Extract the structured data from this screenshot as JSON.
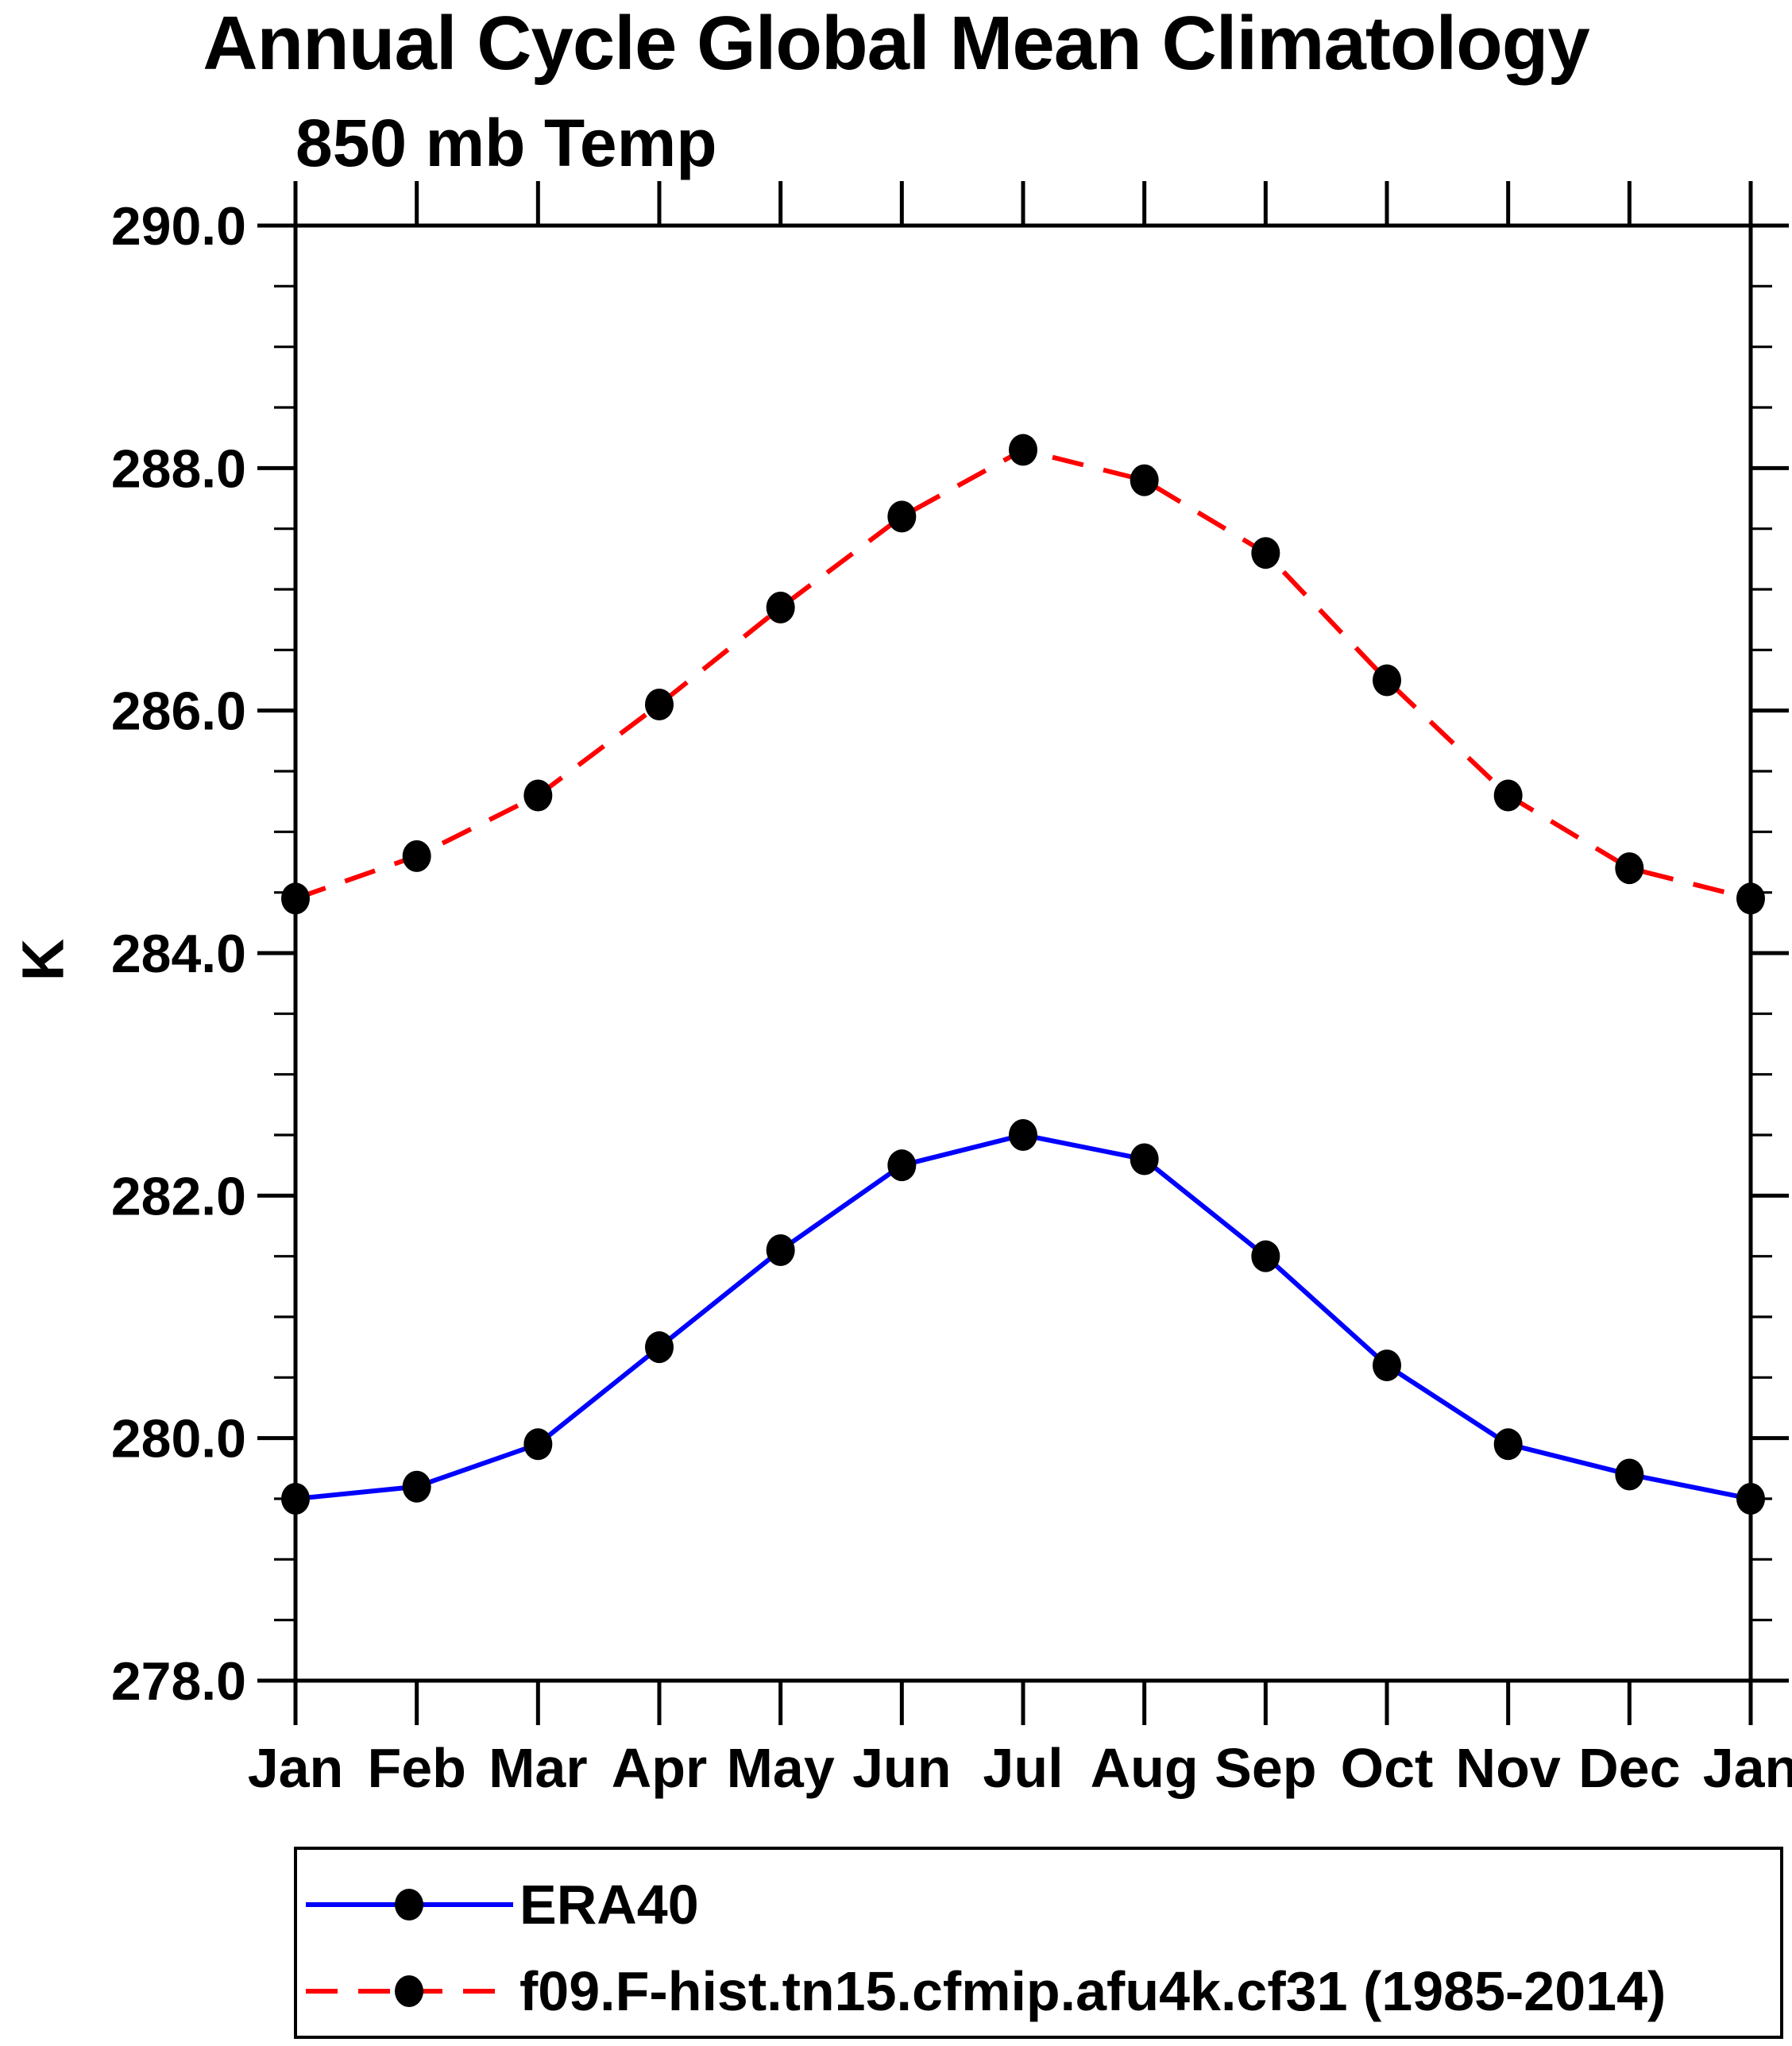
{
  "header": {
    "title": "Annual Cycle Global Mean Climatology",
    "left_string": "850 mb Temp"
  },
  "axes": {
    "y_label": "K",
    "y_tick_labels": [
      "290.0",
      "288.0",
      "286.0",
      "284.0",
      "282.0",
      "280.0",
      "278.0"
    ],
    "x_tick_labels": [
      "Jan",
      "Feb",
      "Mar",
      "Apr",
      "May",
      "Jun",
      "Jul",
      "Aug",
      "Sep",
      "Oct",
      "Nov",
      "Dec",
      "Jan"
    ]
  },
  "colors": {
    "era40_line": "#0000FF",
    "model_line": "#FF0000",
    "marker": "#000000",
    "axis": "#000000",
    "background": "#FFFFFF"
  },
  "chart_data": {
    "type": "line",
    "title": "Annual Cycle Global Mean Climatology",
    "subtitle": "850 mb Temp",
    "ylabel": "K",
    "xlabel": "",
    "x_categories": [
      "Jan",
      "Feb",
      "Mar",
      "Apr",
      "May",
      "Jun",
      "Jul",
      "Aug",
      "Sep",
      "Oct",
      "Nov",
      "Dec",
      "Jan"
    ],
    "ylim": [
      278.0,
      290.0
    ],
    "ytick_major": [
      278.0,
      280.0,
      282.0,
      284.0,
      286.0,
      288.0,
      290.0
    ],
    "ytick_minor_step": 0.5,
    "grid": false,
    "legend_position": "bottom",
    "series": [
      {
        "name": "ERA40",
        "color": "#0000FF",
        "line_style": "solid",
        "marker": "circle",
        "marker_color": "#000000",
        "values": [
          279.5,
          279.6,
          279.95,
          280.75,
          281.55,
          282.25,
          282.5,
          282.3,
          281.5,
          280.6,
          279.95,
          279.7,
          279.5
        ]
      },
      {
        "name": "f09.F-hist.tn15.cfmip.afu4k.cf31 (1985-2014)",
        "color": "#FF0000",
        "line_style": "dashed",
        "marker": "circle",
        "marker_color": "#000000",
        "values": [
          284.45,
          284.8,
          285.3,
          286.05,
          286.85,
          287.6,
          288.15,
          287.9,
          287.3,
          286.25,
          285.3,
          284.7,
          284.45
        ]
      }
    ]
  }
}
